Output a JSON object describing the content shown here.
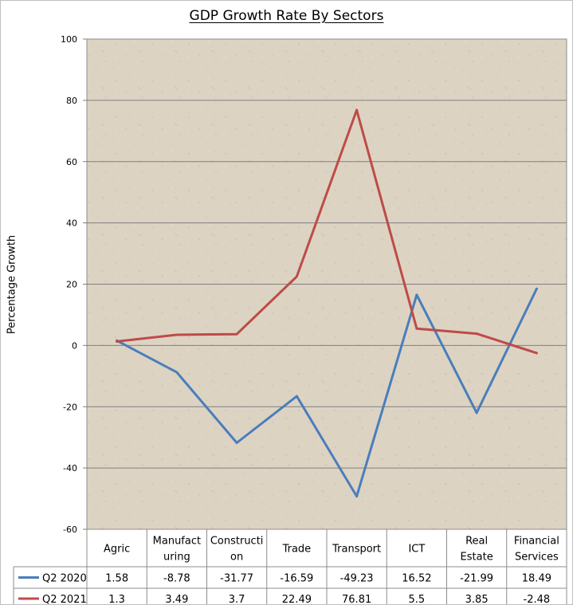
{
  "chart_data": {
    "type": "line",
    "title": "GDP Growth Rate By Sectors",
    "ylabel": "Percentage Growth",
    "xlabel": "",
    "ylim": [
      -60,
      100
    ],
    "yticks": [
      -60,
      -40,
      -20,
      0,
      20,
      40,
      60,
      80,
      100
    ],
    "grid": true,
    "legend": "data-table",
    "categories": [
      [
        "Agric"
      ],
      [
        "Manufact",
        "uring"
      ],
      [
        "Constructi",
        "on"
      ],
      [
        "Trade"
      ],
      [
        "Transport"
      ],
      [
        "ICT"
      ],
      [
        "Real",
        "Estate"
      ],
      [
        "Financial",
        "Services"
      ]
    ],
    "series": [
      {
        "name": "Q2 2020",
        "color": "#4a7ebb",
        "values": [
          1.58,
          -8.78,
          -31.77,
          -16.59,
          -49.23,
          16.52,
          -21.99,
          18.49
        ]
      },
      {
        "name": "Q2 2021",
        "color": "#be4b48",
        "values": [
          1.3,
          3.49,
          3.7,
          22.49,
          76.81,
          5.5,
          3.85,
          -2.48
        ]
      }
    ]
  }
}
